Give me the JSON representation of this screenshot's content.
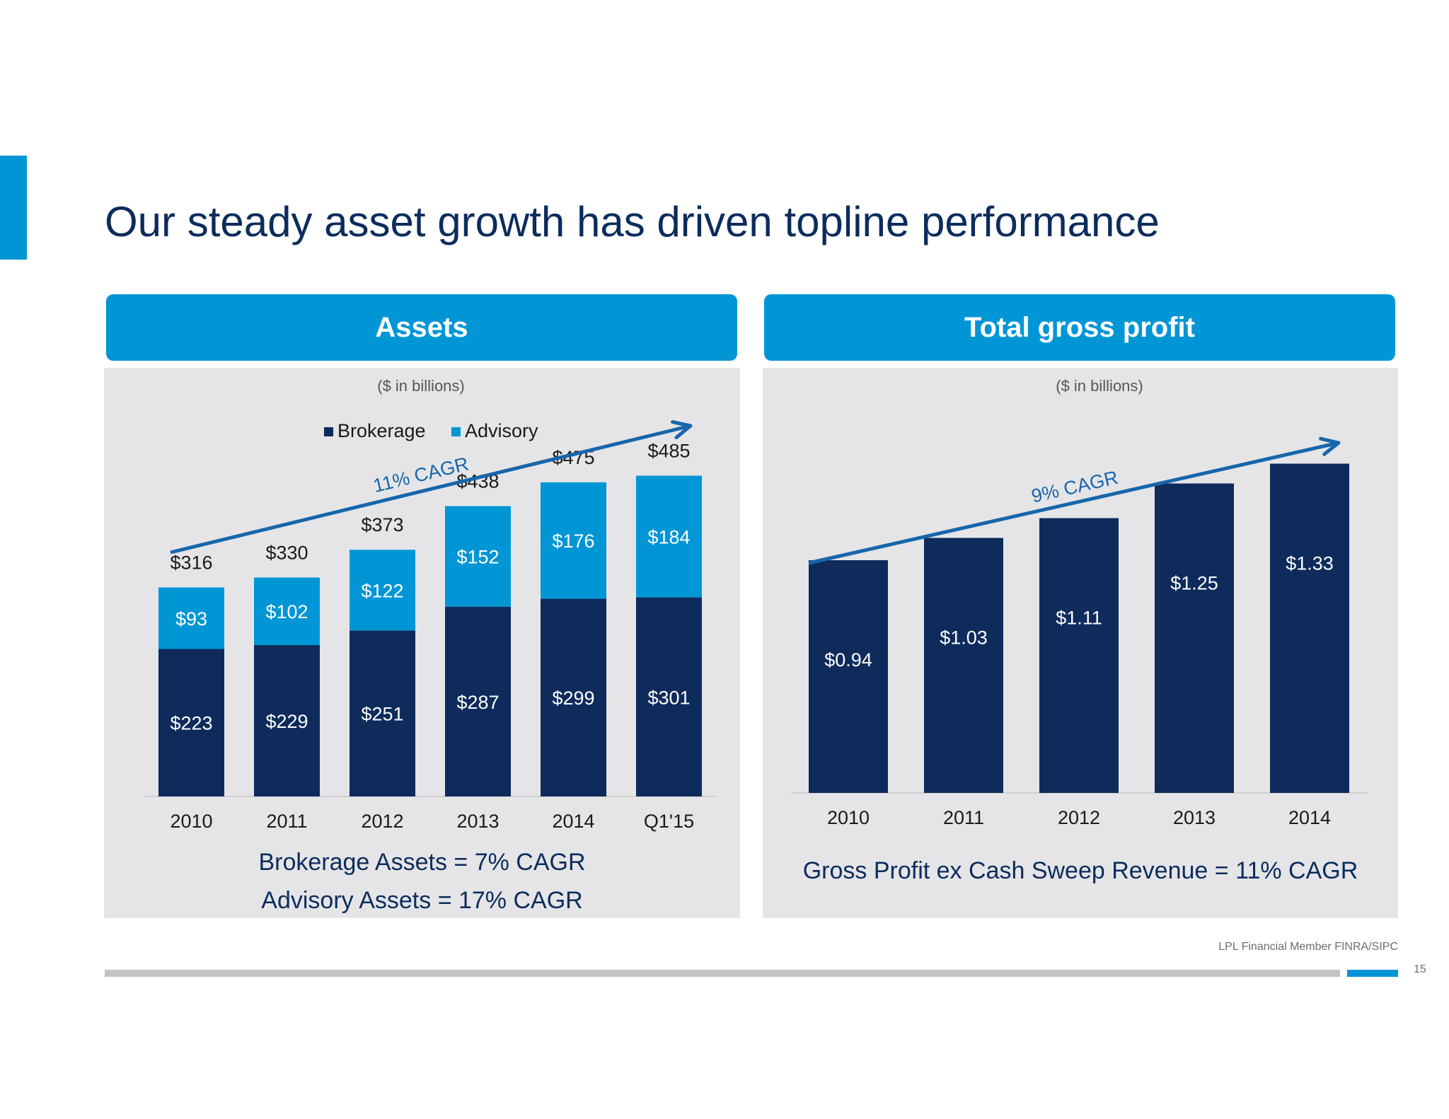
{
  "slide": {
    "title": "Our steady asset growth has driven topline performance",
    "footer": "LPL Financial  Member FINRA/SIPC",
    "page_number": "15"
  },
  "colors": {
    "brokerage": "#0e2b5c",
    "advisory": "#0096d6",
    "header_bg": "#0096d6",
    "panel_bg": "#e5e5e7",
    "trend": "#1666ab"
  },
  "assets_panel": {
    "header": "Assets",
    "footnote_1": "Brokerage Assets = 7% CAGR",
    "footnote_2": "Advisory Assets = 17% CAGR"
  },
  "profit_panel": {
    "header": "Total gross profit",
    "footnote_1": "Gross Profit ex Cash Sweep Revenue  = 11% CAGR"
  },
  "chart_data": [
    {
      "type": "bar",
      "stacked": true,
      "subtitle": "($ in billions)",
      "categories": [
        "2010",
        "2011",
        "2012",
        "2013",
        "2014",
        "Q1'15"
      ],
      "series": [
        {
          "name": "Brokerage",
          "values": [
            223,
            229,
            251,
            287,
            299,
            301
          ],
          "labels": [
            "$223",
            "$229",
            "$251",
            "$287",
            "$299",
            "$301"
          ]
        },
        {
          "name": "Advisory",
          "values": [
            93,
            102,
            122,
            152,
            176,
            184
          ],
          "labels": [
            "$93",
            "$102",
            "$122",
            "$152",
            "$176",
            "$184"
          ]
        }
      ],
      "totals": [
        316,
        330,
        373,
        438,
        475,
        485
      ],
      "total_labels": [
        "$316",
        "$330",
        "$373",
        "$438",
        "$475",
        "$485"
      ],
      "legend": [
        "Brokerage",
        "Advisory"
      ],
      "legend_position": "top-center",
      "annotation": "11% CAGR",
      "ylim": [
        0,
        560
      ]
    },
    {
      "type": "bar",
      "subtitle": "($ in billions)",
      "categories": [
        "2010",
        "2011",
        "2012",
        "2013",
        "2014"
      ],
      "values": [
        0.94,
        1.03,
        1.11,
        1.25,
        1.33
      ],
      "labels": [
        "$0.94",
        "$1.03",
        "$1.11",
        "$1.25",
        "$1.33"
      ],
      "annotation": "9% CAGR",
      "ylim": [
        0,
        1.85
      ]
    }
  ]
}
